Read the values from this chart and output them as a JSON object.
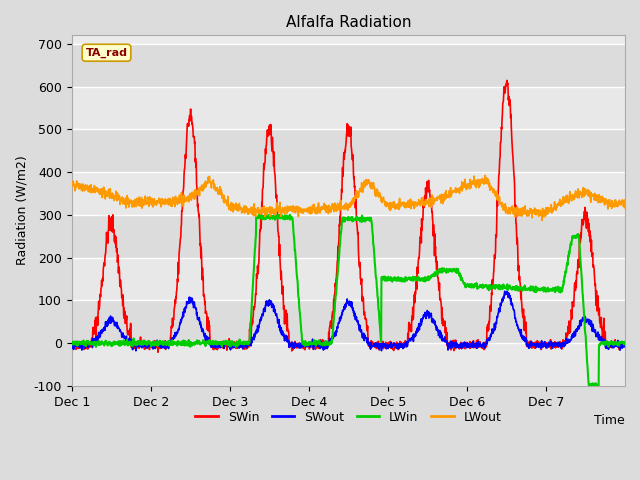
{
  "title": "Alfalfa Radiation",
  "xlabel": "Time",
  "ylabel": "Radiation (W/m2)",
  "ylim": [
    -100,
    720
  ],
  "yticks": [
    -100,
    0,
    100,
    200,
    300,
    400,
    500,
    600,
    700
  ],
  "xlim": [
    0,
    168
  ],
  "xtick_positions": [
    0,
    24,
    48,
    72,
    96,
    120,
    144
  ],
  "xtick_labels": [
    "Dec 1",
    "Dec 2",
    "Dec 3",
    "Dec 4",
    "Dec 5",
    "Dec 6",
    "Dec 7"
  ],
  "bg_color": "#dcdcdc",
  "plot_bg_color": "#ebebeb",
  "legend_label": "TA_rad",
  "series": {
    "SWin": {
      "color": "#ff0000",
      "lw": 1.2
    },
    "SWout": {
      "color": "#0000ff",
      "lw": 1.2
    },
    "LWin": {
      "color": "#00cc00",
      "lw": 1.5
    },
    "LWout": {
      "color": "#ff9900",
      "lw": 1.2
    }
  }
}
